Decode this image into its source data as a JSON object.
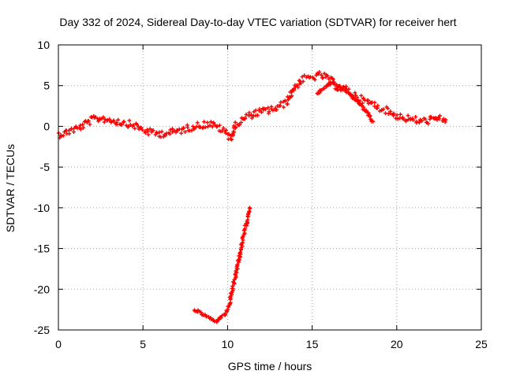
{
  "chart_data": {
    "type": "scatter",
    "title": "Day 332 of 2024, Sidereal Day-to-day VTEC variation (SDTVAR) for receiver hert",
    "xlabel": "GPS time / hours",
    "ylabel": "SDTVAR / TECUs",
    "xlim": [
      0,
      25
    ],
    "ylim": [
      -25,
      10
    ],
    "xticks": [
      "0",
      "5",
      "10",
      "15",
      "20",
      "25"
    ],
    "yticks": [
      "10",
      "5",
      "0",
      "-5",
      "-10",
      "-15",
      "-20",
      "-25"
    ],
    "xtick_values": [
      0,
      5,
      10,
      15,
      20,
      25
    ],
    "ytick_values": [
      10,
      5,
      0,
      -5,
      -10,
      -15,
      -20,
      -25
    ],
    "grid": true,
    "marker": "plus",
    "series_color": "#ff0000",
    "series": [
      {
        "name": "main",
        "x": [
          0.0,
          0.4,
          0.8,
          1.2,
          1.6,
          2.0,
          2.5,
          3.0,
          3.5,
          4.0,
          4.5,
          5.0,
          5.5,
          6.0,
          6.5,
          7.0,
          7.5,
          8.0,
          8.5,
          9.0,
          9.5,
          10.0,
          10.2,
          10.5,
          11.0,
          11.5,
          12.0,
          12.5,
          13.0,
          13.5,
          14.0,
          14.5,
          15.0,
          15.5,
          16.0,
          16.5,
          17.0,
          17.5,
          18.0,
          18.5,
          19.0,
          19.5,
          20.0,
          20.5,
          21.0,
          21.5,
          22.0,
          22.5,
          22.9
        ],
        "y": [
          -1.0,
          -0.8,
          -0.4,
          -0.2,
          0.3,
          0.8,
          1.0,
          0.8,
          0.6,
          0.4,
          0.1,
          -0.4,
          -0.8,
          -0.9,
          -0.8,
          -0.6,
          -0.3,
          0.0,
          0.2,
          0.3,
          -0.2,
          -0.9,
          -1.4,
          0.2,
          1.0,
          1.5,
          1.8,
          2.0,
          2.3,
          3.0,
          5.0,
          5.8,
          6.0,
          6.3,
          5.8,
          4.8,
          4.5,
          3.8,
          3.2,
          2.8,
          2.3,
          1.8,
          1.3,
          1.0,
          0.8,
          0.6,
          0.8,
          0.9,
          0.8
        ]
      },
      {
        "name": "arc",
        "x": [
          8.0,
          8.5,
          9.0,
          9.3,
          9.6,
          9.9,
          10.1,
          10.3,
          10.5,
          10.7,
          10.9,
          11.1,
          11.3
        ],
        "y": [
          -22.5,
          -23.0,
          -23.6,
          -24.0,
          -23.5,
          -23.0,
          -22.0,
          -20.0,
          -18.0,
          -16.0,
          -14.0,
          -12.0,
          -10.0
        ]
      },
      {
        "name": "descent",
        "x": [
          15.3,
          15.6,
          15.9,
          16.2,
          16.5,
          16.8,
          17.1,
          17.4,
          17.7,
          18.0,
          18.3,
          18.6
        ],
        "y": [
          4.0,
          4.6,
          5.0,
          5.4,
          5.0,
          4.6,
          4.2,
          3.6,
          3.0,
          2.3,
          1.6,
          0.6
        ]
      }
    ]
  }
}
